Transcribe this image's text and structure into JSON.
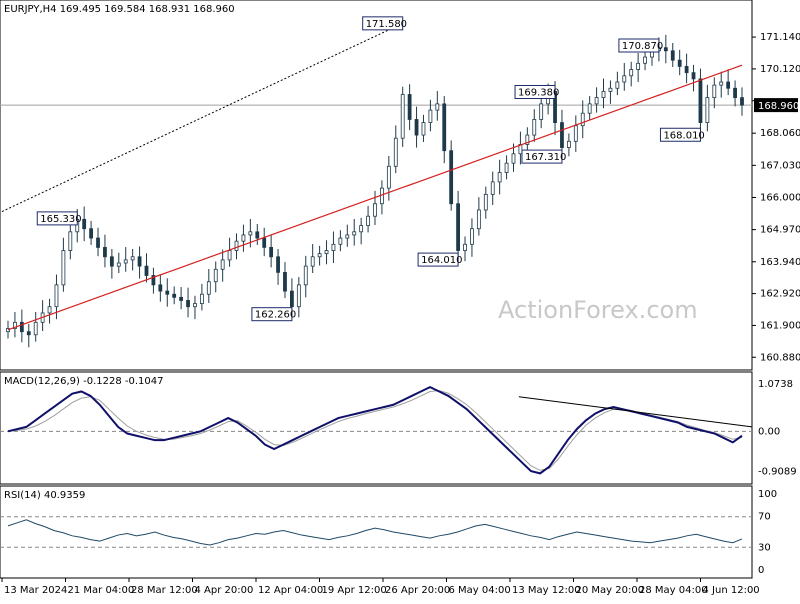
{
  "chart_data": {
    "type": "candlestick",
    "symbol_line": "EURJPY,H4  169.495 169.584 168.931 168.960",
    "watermark": "ActionForex.com",
    "last_price": 168.96,
    "last_price_label": "168.960",
    "price_panel": {
      "ylim": [
        160.6,
        172.2
      ],
      "ticks": [
        160.88,
        161.9,
        162.92,
        163.94,
        164.97,
        166.0,
        167.03,
        168.06,
        169.1,
        170.12,
        171.14
      ],
      "tick_labels": [
        "160.880",
        "161.900",
        "162.920",
        "163.940",
        "164.970",
        "166.000",
        "167.030",
        "168.060",
        "",
        "170.120",
        "171.140"
      ],
      "close": [
        161.8,
        162.0,
        161.7,
        161.6,
        162.0,
        162.3,
        162.5,
        163.2,
        164.3,
        164.9,
        165.3,
        165.0,
        164.7,
        164.4,
        164.1,
        163.8,
        163.9,
        164.0,
        164.1,
        163.8,
        163.5,
        163.2,
        163.0,
        162.9,
        162.8,
        162.7,
        162.5,
        162.6,
        162.9,
        163.3,
        163.7,
        164.0,
        164.3,
        164.6,
        164.8,
        164.9,
        164.7,
        164.4,
        164.1,
        163.6,
        163.0,
        162.5,
        163.2,
        163.8,
        164.1,
        164.2,
        164.3,
        164.5,
        164.7,
        164.8,
        164.9,
        165.1,
        165.4,
        165.8,
        166.3,
        167.0,
        167.9,
        169.3,
        168.5,
        168.0,
        168.4,
        168.8,
        169.0,
        167.5,
        165.8,
        164.3,
        164.5,
        165.0,
        165.6,
        166.1,
        166.5,
        166.8,
        167.1,
        167.4,
        167.7,
        168.0,
        168.5,
        169.0,
        169.4,
        168.4,
        167.6,
        167.8,
        168.3,
        168.7,
        169.0,
        169.2,
        169.4,
        169.5,
        169.7,
        169.9,
        170.1,
        170.3,
        170.5,
        170.7,
        170.8,
        170.7,
        170.4,
        170.2,
        170.0,
        169.8,
        168.4,
        169.2,
        169.6,
        169.7,
        169.5,
        169.2,
        168.96
      ],
      "ma": [
        161.76,
        161.84,
        161.92,
        162.0,
        162.08,
        162.16,
        162.24,
        162.32,
        162.4,
        162.48,
        162.56,
        162.64,
        162.72,
        162.8,
        162.88,
        162.96,
        163.04,
        163.12,
        163.2,
        163.28,
        163.36,
        163.44,
        163.52,
        163.6,
        163.68,
        163.76,
        163.84,
        163.92,
        164.0,
        164.08,
        164.16,
        164.24,
        164.32,
        164.4,
        164.48,
        164.56,
        164.64,
        164.72,
        164.8,
        164.88,
        164.96,
        165.04,
        165.12,
        165.2,
        165.28,
        165.36,
        165.44,
        165.52,
        165.6,
        165.68,
        165.76,
        165.84,
        165.92,
        166.0,
        166.08,
        166.16,
        166.24,
        166.32,
        166.4,
        166.48,
        166.56,
        166.64,
        166.72,
        166.8,
        166.88,
        166.96,
        167.04,
        167.12,
        167.2,
        167.28,
        167.36,
        167.44,
        167.52,
        167.6,
        167.68,
        167.76,
        167.84,
        167.92,
        168.0,
        168.08,
        168.16,
        168.24,
        168.32,
        168.4,
        168.48,
        168.56,
        168.64,
        168.72,
        168.8,
        168.88,
        168.96,
        169.04,
        169.12,
        169.2,
        169.28,
        169.36,
        169.44,
        169.52,
        169.6,
        169.68,
        169.76,
        169.84,
        169.92,
        170.0,
        170.08,
        170.16,
        170.24
      ],
      "annotations": [
        {
          "label": "171.580",
          "i": 57,
          "price": 171.58
        },
        {
          "label": "165.330",
          "i": 10,
          "price": 165.33
        },
        {
          "label": "162.260",
          "i": 41,
          "price": 162.26
        },
        {
          "label": "164.010",
          "i": 65,
          "price": 164.01
        },
        {
          "label": "167.310",
          "i": 80,
          "price": 167.31
        },
        {
          "label": "169.380",
          "i": 79,
          "price": 169.38
        },
        {
          "label": "170.870",
          "i": 94,
          "price": 170.87
        },
        {
          "label": "168.010",
          "i": 100,
          "price": 168.01
        }
      ]
    },
    "macd_panel": {
      "label": "MACD(12,26,9) -0.1228 -0.1047",
      "ylim": [
        -1.1,
        1.25
      ],
      "tick_values": [
        1.0738,
        0.0,
        -0.9089
      ],
      "tick_labels": [
        "1.0738",
        "0.00",
        "-0.9089"
      ],
      "macd": [
        0.0,
        0.05,
        0.1,
        0.25,
        0.4,
        0.55,
        0.7,
        0.85,
        0.9,
        0.8,
        0.6,
        0.35,
        0.1,
        -0.05,
        -0.1,
        -0.15,
        -0.2,
        -0.2,
        -0.15,
        -0.1,
        -0.05,
        0.0,
        0.1,
        0.2,
        0.3,
        0.2,
        0.05,
        -0.1,
        -0.3,
        -0.4,
        -0.3,
        -0.2,
        -0.1,
        0.0,
        0.1,
        0.2,
        0.3,
        0.35,
        0.4,
        0.45,
        0.5,
        0.55,
        0.6,
        0.7,
        0.8,
        0.9,
        1.0,
        0.9,
        0.8,
        0.65,
        0.5,
        0.3,
        0.1,
        -0.1,
        -0.3,
        -0.5,
        -0.7,
        -0.9,
        -0.95,
        -0.8,
        -0.5,
        -0.2,
        0.05,
        0.25,
        0.4,
        0.5,
        0.55,
        0.5,
        0.45,
        0.4,
        0.35,
        0.3,
        0.25,
        0.2,
        0.1,
        0.05,
        0.0,
        -0.05,
        -0.15,
        -0.25,
        -0.1
      ],
      "signal": [
        0.0,
        0.02,
        0.05,
        0.12,
        0.22,
        0.35,
        0.5,
        0.65,
        0.75,
        0.78,
        0.7,
        0.5,
        0.3,
        0.12,
        0.0,
        -0.08,
        -0.14,
        -0.18,
        -0.18,
        -0.14,
        -0.1,
        -0.05,
        0.03,
        0.12,
        0.22,
        0.24,
        0.12,
        -0.02,
        -0.18,
        -0.3,
        -0.32,
        -0.25,
        -0.16,
        -0.06,
        0.04,
        0.13,
        0.22,
        0.29,
        0.34,
        0.4,
        0.45,
        0.5,
        0.55,
        0.62,
        0.7,
        0.8,
        0.9,
        0.92,
        0.86,
        0.74,
        0.6,
        0.42,
        0.22,
        0.02,
        -0.18,
        -0.38,
        -0.58,
        -0.78,
        -0.88,
        -0.84,
        -0.62,
        -0.34,
        -0.08,
        0.14,
        0.3,
        0.42,
        0.5,
        0.5,
        0.47,
        0.42,
        0.37,
        0.32,
        0.27,
        0.22,
        0.14,
        0.08,
        0.02,
        -0.03,
        -0.1,
        -0.18,
        -0.14
      ],
      "trendline_from": [
        0.8,
        0.0
      ],
      "trendline_to": [
        0.12,
        0.0
      ]
    },
    "rsi_panel": {
      "label": "RSI(14) 40.9359",
      "ylim": [
        -5,
        105
      ],
      "tick_values": [
        100,
        70,
        30,
        0
      ],
      "tick_labels": [
        "100",
        "70",
        "30",
        "0"
      ],
      "values": [
        58,
        62,
        66,
        61,
        57,
        52,
        49,
        45,
        43,
        40,
        38,
        42,
        46,
        48,
        45,
        47,
        50,
        46,
        43,
        41,
        38,
        35,
        33,
        36,
        40,
        42,
        45,
        48,
        47,
        50,
        52,
        49,
        46,
        44,
        42,
        40,
        43,
        45,
        48,
        52,
        55,
        53,
        50,
        48,
        46,
        44,
        42,
        45,
        47,
        50,
        54,
        58,
        60,
        57,
        54,
        51,
        48,
        45,
        43,
        40,
        44,
        47,
        50,
        48,
        46,
        44,
        42,
        40,
        38,
        37,
        36,
        38,
        40,
        42,
        45,
        47,
        44,
        41,
        38,
        36,
        40.9359
      ]
    },
    "x_labels": [
      "13 Mar 2024",
      "21 Mar 04:00",
      "28 Mar 12:00",
      "4 Apr 20:00",
      "12 Apr 04:00",
      "19 Apr 12:00",
      "26 Apr 20:00",
      "6 May 04:00",
      "13 May 12:00",
      "20 May 20:00",
      "28 May 04:00",
      "4 Jun 12:00"
    ]
  }
}
